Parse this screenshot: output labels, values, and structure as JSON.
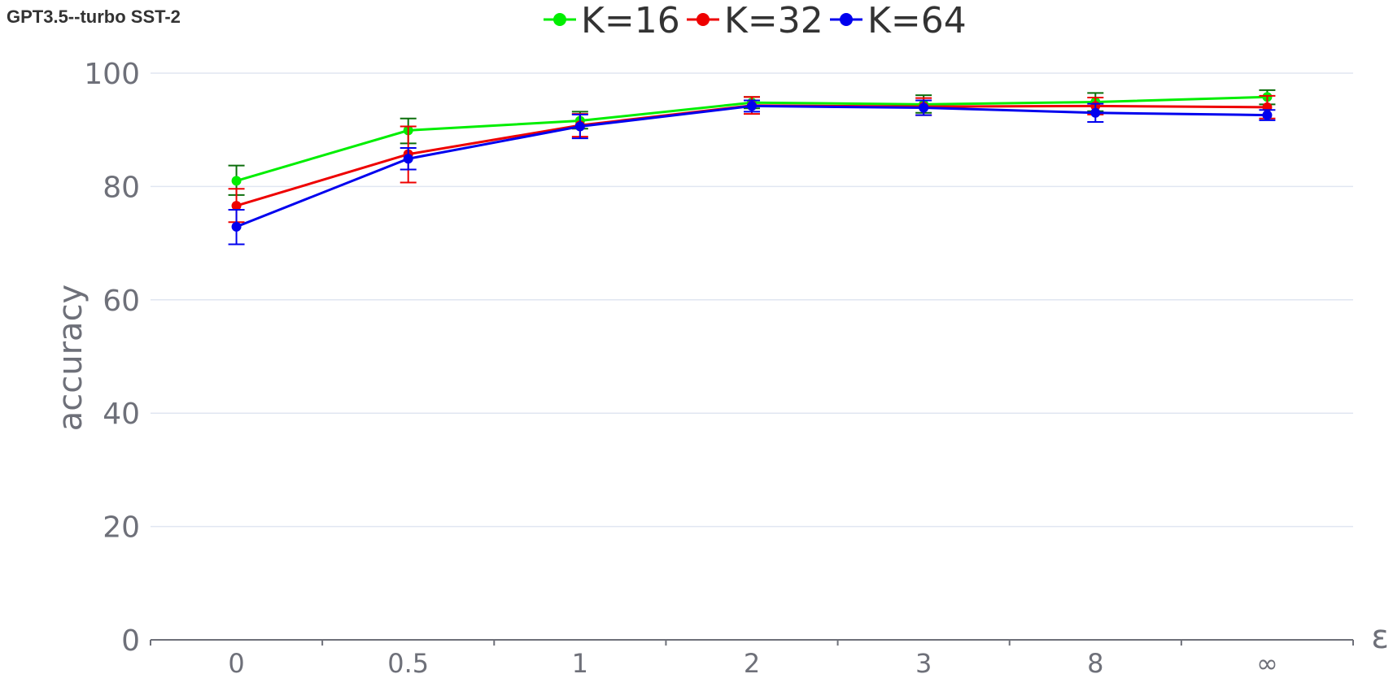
{
  "chart_data": {
    "type": "line",
    "title": "GPT3.5--turbo  SST-2",
    "xlabel": "ε",
    "ylabel": "accuracy",
    "categories": [
      "0",
      "0.5",
      "1",
      "2",
      "3",
      "8",
      "∞"
    ],
    "ylim": [
      0,
      100
    ],
    "yticks": [
      0,
      20,
      40,
      60,
      80,
      100
    ],
    "grid": true,
    "legend_position": "top-center",
    "series": [
      {
        "name": "K=16",
        "color": "#00ee00",
        "error_color": "#0b6e0b",
        "values": [
          81.0,
          89.9,
          91.6,
          94.8,
          94.5,
          94.9,
          95.8
        ],
        "err_low": [
          78.5,
          87.6,
          90.2,
          93.8,
          93.0,
          93.3,
          94.5
        ],
        "err_high": [
          83.7,
          92.0,
          93.2,
          95.8,
          96.1,
          96.5,
          97.0
        ]
      },
      {
        "name": "K=32",
        "color": "#ee0000",
        "error_color": "#ee0000",
        "values": [
          76.6,
          85.7,
          90.8,
          94.3,
          94.1,
          94.2,
          94.0
        ],
        "err_low": [
          73.7,
          80.7,
          88.8,
          92.8,
          92.6,
          92.7,
          92.0
        ],
        "err_high": [
          79.6,
          90.6,
          92.8,
          95.8,
          95.6,
          95.7,
          96.0
        ]
      },
      {
        "name": "K=64",
        "color": "#0000ee",
        "error_color": "#0000ee",
        "values": [
          72.9,
          84.9,
          90.6,
          94.2,
          93.9,
          93.0,
          92.6
        ],
        "err_low": [
          69.8,
          83.0,
          88.5,
          93.2,
          92.6,
          91.4,
          91.7
        ],
        "err_high": [
          75.9,
          86.8,
          92.7,
          95.2,
          95.2,
          94.6,
          93.5
        ]
      }
    ]
  }
}
